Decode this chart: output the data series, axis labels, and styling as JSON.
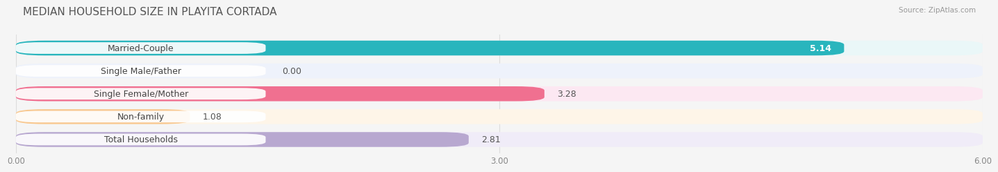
{
  "title": "MEDIAN HOUSEHOLD SIZE IN PLAYITA CORTADA",
  "source": "Source: ZipAtlas.com",
  "categories": [
    "Married-Couple",
    "Single Male/Father",
    "Single Female/Mother",
    "Non-family",
    "Total Households"
  ],
  "values": [
    5.14,
    0.0,
    3.28,
    1.08,
    2.81
  ],
  "bar_colors": [
    "#29b5bd",
    "#a8c0e8",
    "#f07090",
    "#f8c890",
    "#b8a8d0"
  ],
  "bar_bg_colors": [
    "#eaf7f8",
    "#eef2fb",
    "#fce8f2",
    "#fef5e8",
    "#f0ecf8"
  ],
  "label_bg_colors": [
    "#eaf7f8",
    "#eef2fb",
    "#fce8f2",
    "#fef5e8",
    "#f0ecf8"
  ],
  "value_inside_color": [
    "#ffffff",
    "#555555",
    "#555555",
    "#555555",
    "#555555"
  ],
  "xlim": [
    0,
    6.0
  ],
  "xticks": [
    0.0,
    3.0,
    6.0
  ],
  "xticklabels": [
    "0.00",
    "3.00",
    "6.00"
  ],
  "value_fontsize": 9,
  "label_fontsize": 9,
  "title_fontsize": 11,
  "bar_height": 0.65,
  "background_color": "#f5f5f5",
  "grid_color": "#dddddd",
  "row_sep_color": "#e0e0e0"
}
